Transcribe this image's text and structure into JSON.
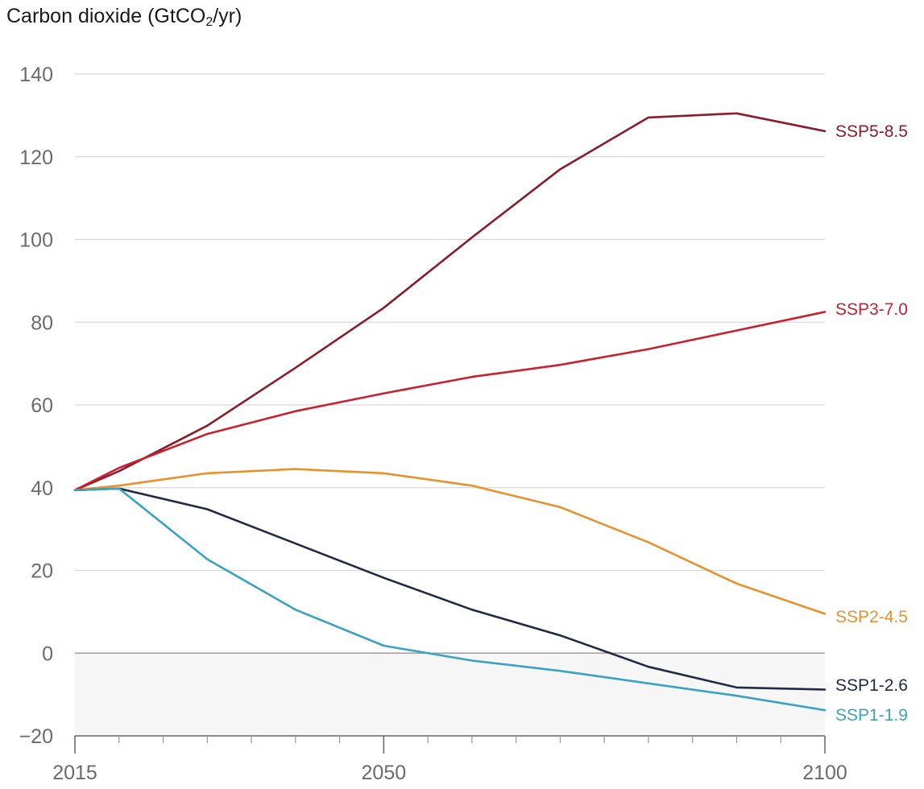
{
  "chart_data": {
    "type": "line",
    "title": "Carbon dioxide (GtCO",
    "title_sub": "2",
    "title_suffix": "/yr)",
    "xlabel": "",
    "ylabel": "",
    "xlim": [
      2015,
      2100
    ],
    "ylim": [
      -20,
      140
    ],
    "yticks": [
      -20,
      0,
      20,
      40,
      60,
      80,
      100,
      120,
      140
    ],
    "ytick_labels": [
      "−20",
      "0",
      "20",
      "40",
      "60",
      "80",
      "100",
      "120",
      "140"
    ],
    "xticks_labeled": [
      2015,
      2050,
      2100
    ],
    "xticks_labeled_text": [
      "2015",
      "2050",
      "2100"
    ],
    "xticks_minor": [
      2020,
      2025,
      2030,
      2035,
      2040,
      2045,
      2055,
      2060,
      2065,
      2070,
      2075,
      2080,
      2085,
      2090,
      2095
    ],
    "grid": true,
    "negative_region_shaded": true,
    "colors": {
      "SSP5-8.5": "#8a1c2b",
      "SSP3-7.0": "#c8202f",
      "SSP2-4.5": "#e8912e",
      "SSP1-2.6": "#1f2a44",
      "SSP1-1.9": "#3aa2c2",
      "grid": "#d9d9d9",
      "zero": "#9e9e9e",
      "shade": "#f6f6f6"
    },
    "series": [
      {
        "name": "SSP5-8.5",
        "x": [
          2015,
          2020,
          2030,
          2040,
          2050,
          2060,
          2070,
          2080,
          2090,
          2100
        ],
        "values": [
          39.4,
          44.0,
          55.0,
          69.0,
          83.5,
          100.5,
          117.0,
          129.5,
          130.5,
          126.2
        ]
      },
      {
        "name": "SSP3-7.0",
        "x": [
          2015,
          2020,
          2030,
          2040,
          2050,
          2060,
          2070,
          2080,
          2090,
          2100
        ],
        "values": [
          39.4,
          44.8,
          53.0,
          58.5,
          62.8,
          66.8,
          69.7,
          73.5,
          78.0,
          82.5
        ]
      },
      {
        "name": "SSP2-4.5",
        "x": [
          2015,
          2020,
          2030,
          2040,
          2050,
          2060,
          2070,
          2080,
          2090,
          2100
        ],
        "values": [
          39.4,
          40.5,
          43.5,
          44.5,
          43.5,
          40.5,
          35.3,
          26.8,
          16.8,
          9.5
        ]
      },
      {
        "name": "SSP1-2.6",
        "x": [
          2015,
          2020,
          2030,
          2040,
          2050,
          2060,
          2070,
          2080,
          2090,
          2100
        ],
        "values": [
          39.4,
          39.8,
          34.8,
          26.5,
          18.2,
          10.5,
          4.3,
          -3.3,
          -8.3,
          -8.8
        ]
      },
      {
        "name": "SSP1-1.9",
        "x": [
          2015,
          2020,
          2030,
          2040,
          2050,
          2060,
          2070,
          2080,
          2090,
          2100
        ],
        "values": [
          39.4,
          39.8,
          22.7,
          10.5,
          1.8,
          -1.8,
          -4.3,
          -7.3,
          -10.3,
          -13.8
        ]
      }
    ]
  }
}
